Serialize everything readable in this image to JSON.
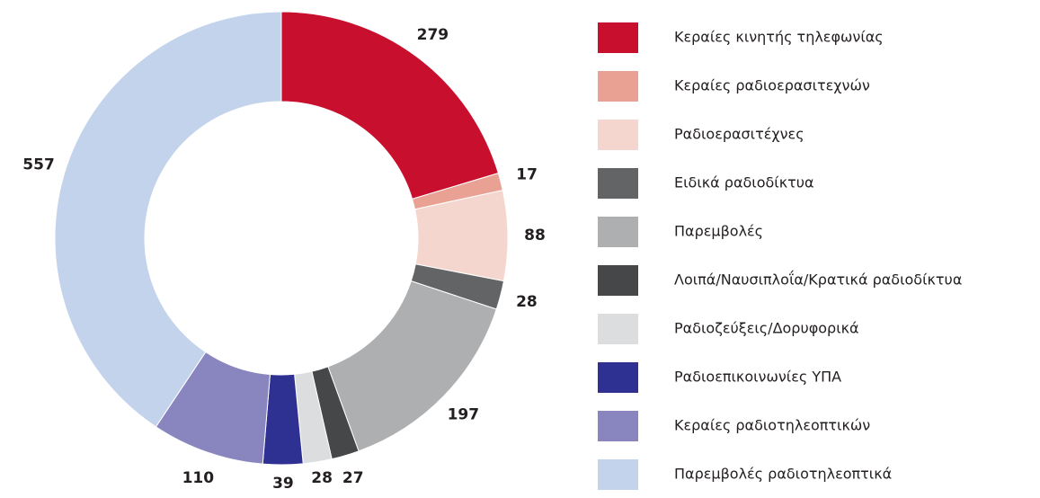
{
  "chart_data": {
    "type": "donut",
    "categories": [
      "Κεραίες κινητής τηλεφωνίας",
      "Κεραίες ραδιοερασιτεχνών",
      "Ραδιοερασιτέχνες",
      "Ειδικά ραδιοδίκτυα",
      "Παρεμβολές",
      "Λοιπά/Ναυσιπλοΐα/Κρατικά ραδιοδίκτυα",
      "Ραδιοζεύξεις/Δορυφορικά",
      "Ραδιοεπικοινωνίες ΥΠΑ",
      "Κεραίες ραδιοτηλεοπτικών",
      "Παρεμβολές ραδιοτηλεοπτικά"
    ],
    "values": [
      279,
      17,
      88,
      28,
      197,
      27,
      28,
      39,
      110,
      557
    ],
    "colors": [
      "#c8102e",
      "#e8a193",
      "#f5d6ce",
      "#636466",
      "#aeafb1",
      "#464749",
      "#dcdddf",
      "#2e3192",
      "#8985bf",
      "#c3d3ec"
    ],
    "legend": "right"
  }
}
